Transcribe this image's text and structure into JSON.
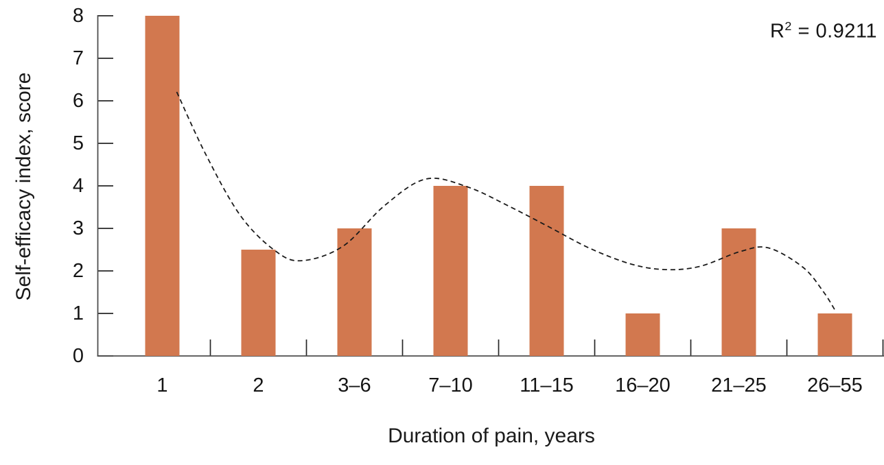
{
  "chart_data": {
    "type": "bar",
    "title": "",
    "categories": [
      "1",
      "2",
      "3–6",
      "7–10",
      "11–15",
      "16–20",
      "21–25",
      "26–55"
    ],
    "values": [
      8,
      2.5,
      3,
      4,
      4,
      1,
      3,
      1
    ],
    "xlabel": "Duration of pain, years",
    "ylabel": "Self-efficacy index, score",
    "ylim": [
      0,
      8
    ],
    "yticks": [
      0,
      1,
      2,
      3,
      4,
      5,
      6,
      7,
      8
    ],
    "grid": false,
    "legend": "none",
    "bar_color": "#d2784f",
    "axis_color": "#4d4d4d",
    "tick_color": "#262626",
    "annotation": {
      "text": "R² = 0.9211",
      "base": "R",
      "sup": "2",
      "rest": " = 0.9211",
      "r_squared": 0.9211
    },
    "trendline": {
      "type": "polynomial",
      "style": "dashed",
      "color": "#1a1a1a",
      "points": [
        [
          1.15,
          6.21
        ],
        [
          1.45,
          4.75
        ],
        [
          1.81,
          3.31
        ],
        [
          2.17,
          2.48
        ],
        [
          2.45,
          2.24
        ],
        [
          2.88,
          2.58
        ],
        [
          3.31,
          3.53
        ],
        [
          3.74,
          4.16
        ],
        [
          4.17,
          3.98
        ],
        [
          4.6,
          3.53
        ],
        [
          5.02,
          3.04
        ],
        [
          5.45,
          2.53
        ],
        [
          5.88,
          2.16
        ],
        [
          6.24,
          2.03
        ],
        [
          6.6,
          2.11
        ],
        [
          7.02,
          2.46
        ],
        [
          7.31,
          2.54
        ],
        [
          7.67,
          2.08
        ],
        [
          7.88,
          1.51
        ],
        [
          8.0,
          1.08
        ]
      ]
    }
  }
}
